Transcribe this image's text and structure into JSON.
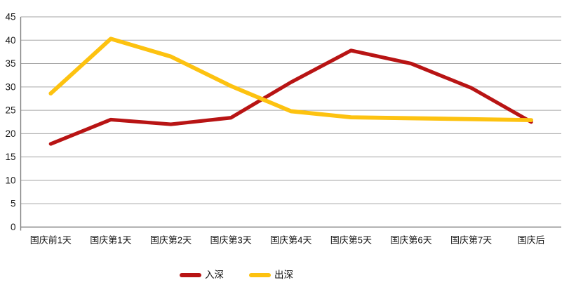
{
  "chart_data": {
    "type": "line",
    "title": "",
    "xlabel": "",
    "ylabel": "",
    "categories": [
      "国庆前1天",
      "国庆第1天",
      "国庆第2天",
      "国庆第3天",
      "国庆第4天",
      "国庆第5天",
      "国庆第6天",
      "国庆第7天",
      "国庆后"
    ],
    "series": [
      {
        "name": "入深",
        "color": "#B81414",
        "values": [
          17.8,
          23.0,
          22.0,
          23.4,
          31.0,
          37.8,
          35.0,
          29.8,
          22.5
        ]
      },
      {
        "name": "出深",
        "color": "#FDC210",
        "values": [
          28.6,
          40.3,
          36.5,
          30.2,
          24.8,
          23.5,
          23.3,
          23.1,
          22.9
        ]
      }
    ],
    "ylim": [
      0,
      45
    ],
    "y_ticks": [
      0,
      5,
      10,
      15,
      20,
      25,
      30,
      35,
      40,
      45
    ],
    "grid": "horizontal",
    "legend_position": "bottom",
    "colors": {
      "grid_line": "#A6A6A6",
      "axis_line": "#808080",
      "tick_label": "#1A1A1A",
      "background": "#FFFFFF"
    }
  }
}
